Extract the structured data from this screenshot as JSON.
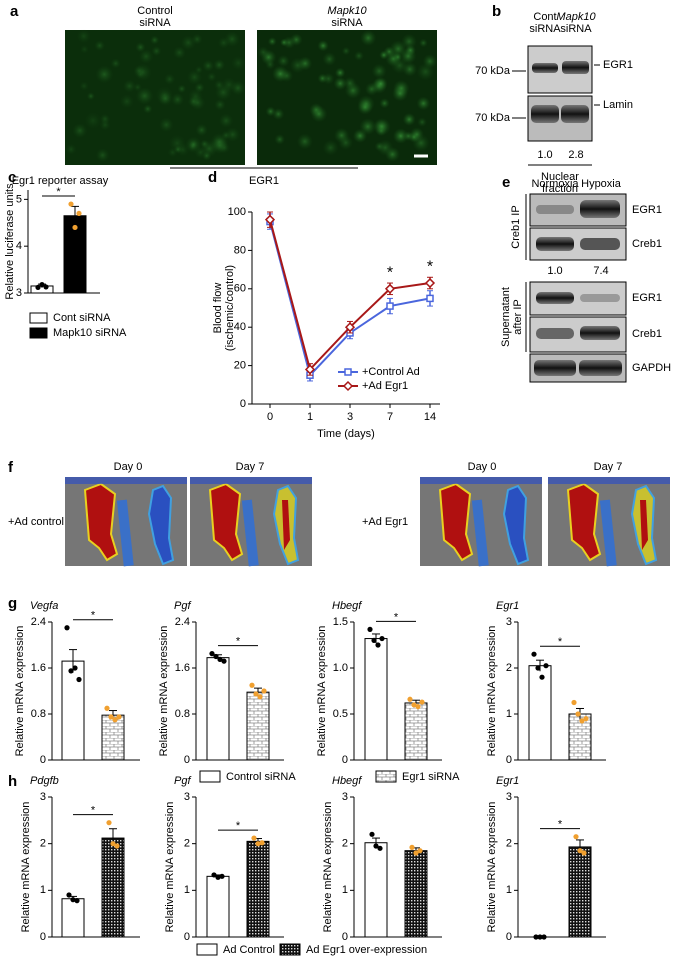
{
  "panel_labels": [
    "a",
    "b",
    "c",
    "d",
    "e",
    "f",
    "g",
    "h"
  ],
  "panel_a": {
    "labels": [
      [
        "Control",
        "siRNA"
      ],
      [
        "Mapk10",
        "siRNA"
      ]
    ],
    "caption": "EGR1"
  },
  "panel_b": {
    "lanes": [
      [
        "Cont",
        "siRNA"
      ],
      [
        "Mapk10",
        "siRNA"
      ]
    ],
    "markers": [
      "70 kDa",
      "70 kDa"
    ],
    "bands": [
      "EGR1",
      "Lamin"
    ],
    "quant": [
      "1.0",
      "2.8"
    ],
    "fraction": [
      "Nuclear",
      "fraction"
    ]
  },
  "panel_e": {
    "lanes": [
      "Normoxia",
      "Hypoxia"
    ],
    "groups": [
      [
        "Creb1 IP"
      ],
      [
        "Supernatant",
        "after IP"
      ]
    ],
    "bands": [
      "EGR1",
      "Creb1",
      "EGR1",
      "Creb1",
      "GAPDH"
    ],
    "quant": [
      "1.0",
      "7.4"
    ]
  },
  "panel_f": {
    "days": [
      "Day 0",
      "Day 7",
      "Day 0",
      "Day 7"
    ],
    "rows": [
      "+Ad control",
      "+Ad Egr1"
    ]
  },
  "legend_g": [
    "Control siRNA",
    "Egr1 siRNA"
  ],
  "legend_h": [
    "Ad Control",
    "Ad Egr1 over-expression"
  ],
  "chart_data": [
    {
      "type": "bar",
      "title": "Egr1 reporter assay",
      "ylabel": "Relative luciferase units",
      "ylim": [
        3,
        5.2
      ],
      "yticks": [
        3,
        4,
        5
      ],
      "annotation": "*",
      "series": [
        {
          "name": "Cont siRNA",
          "color": "#ffffff",
          "point_color": "#000000",
          "values": [
            3.15
          ],
          "errors": [
            0.04
          ],
          "points": [
            3.12,
            3.18,
            3.13
          ]
        },
        {
          "name": "Mapk10 siRNA",
          "color": "#000000",
          "point_color": "#f0a030",
          "values": [
            4.65
          ],
          "errors": [
            0.2
          ],
          "points": [
            4.9,
            4.4,
            4.7
          ]
        }
      ]
    },
    {
      "type": "line",
      "xlabel": "Time (days)",
      "ylabel": [
        "Blood flow",
        "(ischemic/control)"
      ],
      "categories": [
        "0",
        "1",
        "3",
        "7",
        "14"
      ],
      "ylim": [
        0,
        100
      ],
      "yticks": [
        0,
        20,
        40,
        60,
        80,
        100
      ],
      "annotations": [
        "*",
        "*"
      ],
      "series": [
        {
          "name": "+Control Ad",
          "color": "#4a66dd",
          "marker": "square",
          "values": [
            95,
            15,
            37,
            51,
            55
          ],
          "errors": [
            4,
            3,
            3,
            4,
            4
          ]
        },
        {
          "name": "+Ad Egr1",
          "color": "#a81818",
          "marker": "diamond",
          "values": [
            96,
            18,
            40,
            60,
            63
          ],
          "errors": [
            4,
            3,
            3,
            3,
            3
          ]
        }
      ]
    },
    {
      "type": "bar",
      "title": "Vegfa",
      "ylabel": "Relative mRNA expression",
      "ylim": [
        0,
        2.4
      ],
      "yticks": [
        0,
        0.8,
        1.6,
        2.4
      ],
      "annotation": "*",
      "series": [
        {
          "color": "#ffffff",
          "point_color": "#000000",
          "values": [
            1.72
          ],
          "errors": [
            0.2
          ],
          "points": [
            2.3,
            1.55,
            1.6,
            1.4
          ]
        },
        {
          "color": "#ffffff",
          "pattern": "brick",
          "point_color": "#f0a030",
          "values": [
            0.78
          ],
          "errors": [
            0.08
          ],
          "points": [
            0.9,
            0.75,
            0.7,
            0.75
          ]
        }
      ]
    },
    {
      "type": "bar",
      "title": "Pgf",
      "ylabel": "Relative mRNA expression",
      "ylim": [
        0,
        2.4
      ],
      "yticks": [
        0,
        0.8,
        1.6,
        2.4
      ],
      "annotation": "*",
      "series": [
        {
          "color": "#ffffff",
          "point_color": "#000000",
          "values": [
            1.78
          ],
          "errors": [
            0.05
          ],
          "points": [
            1.85,
            1.8,
            1.75,
            1.72
          ]
        },
        {
          "color": "#ffffff",
          "pattern": "brick",
          "point_color": "#f0a030",
          "values": [
            1.18
          ],
          "errors": [
            0.07
          ],
          "points": [
            1.3,
            1.15,
            1.1,
            1.2
          ]
        }
      ]
    },
    {
      "type": "bar",
      "title": "Hbegf",
      "ylabel": "Relative mRNA expression",
      "ylim": [
        0,
        1.5
      ],
      "yticks": [
        0,
        0.5,
        {
          "value": 1,
          "label": "1.0"
        },
        1.5
      ],
      "annotation": "*",
      "series": [
        {
          "color": "#ffffff",
          "point_color": "#000000",
          "values": [
            1.32
          ],
          "errors": [
            0.05
          ],
          "points": [
            1.42,
            1.3,
            1.25,
            1.32
          ]
        },
        {
          "color": "#ffffff",
          "pattern": "brick",
          "point_color": "#f0a030",
          "values": [
            0.62
          ],
          "errors": [
            0.03
          ],
          "points": [
            0.66,
            0.6,
            0.58,
            0.63
          ]
        }
      ]
    },
    {
      "type": "bar",
      "title": "Egr1",
      "ylabel": "Relative mRNA expression",
      "ylim": [
        0,
        3
      ],
      "yticks": [
        0,
        1,
        2,
        3
      ],
      "annotation": "*",
      "series": [
        {
          "color": "#ffffff",
          "point_color": "#000000",
          "values": [
            2.05
          ],
          "errors": [
            0.12
          ],
          "points": [
            2.3,
            2.0,
            1.8,
            2.05
          ]
        },
        {
          "color": "#ffffff",
          "pattern": "brick",
          "point_color": "#f0a030",
          "values": [
            1.0
          ],
          "errors": [
            0.12
          ],
          "points": [
            1.25,
            1.0,
            0.85,
            0.9
          ]
        }
      ]
    },
    {
      "type": "bar",
      "title": "Pdgfb",
      "ylabel": "Relative mRNA expression",
      "ylim": [
        0,
        3
      ],
      "yticks": [
        0,
        1,
        2,
        3
      ],
      "annotation": "*",
      "series": [
        {
          "color": "#ffffff",
          "point_color": "#000000",
          "values": [
            0.82
          ],
          "errors": [
            0.05
          ],
          "points": [
            0.9,
            0.8,
            0.78
          ]
        },
        {
          "color": "#000000",
          "pattern": "grid",
          "point_color": "#f0a030",
          "values": [
            2.12
          ],
          "errors": [
            0.2
          ],
          "points": [
            2.45,
            2.0,
            1.95
          ]
        }
      ]
    },
    {
      "type": "bar",
      "title": "Pgf",
      "ylabel": "Relative mRNA expression",
      "ylim": [
        0,
        3
      ],
      "yticks": [
        0,
        1,
        2,
        3
      ],
      "annotation": "*",
      "series": [
        {
          "color": "#ffffff",
          "point_color": "#000000",
          "values": [
            1.3
          ],
          "errors": [
            0.03
          ],
          "points": [
            1.33,
            1.28,
            1.3
          ]
        },
        {
          "color": "#000000",
          "pattern": "grid",
          "point_color": "#f0a030",
          "values": [
            2.05
          ],
          "errors": [
            0.06
          ],
          "points": [
            2.12,
            2.0,
            2.02
          ]
        }
      ]
    },
    {
      "type": "bar",
      "title": "Hbegf",
      "ylabel": "Relative mRNA expression",
      "ylim": [
        0,
        3
      ],
      "yticks": [
        0,
        1,
        2,
        3
      ],
      "series": [
        {
          "color": "#ffffff",
          "point_color": "#000000",
          "values": [
            2.02
          ],
          "errors": [
            0.1
          ],
          "points": [
            2.2,
            1.95,
            1.9
          ]
        },
        {
          "color": "#000000",
          "pattern": "grid",
          "point_color": "#f0a030",
          "values": [
            1.85
          ],
          "errors": [
            0.06
          ],
          "points": [
            1.92,
            1.8,
            1.85
          ]
        }
      ]
    },
    {
      "type": "bar",
      "title": "Egr1",
      "ylabel": "Relative mRNA expression",
      "ylim": [
        0,
        3
      ],
      "yticks": [
        0,
        1,
        2,
        3
      ],
      "annotation": "*",
      "series": [
        {
          "color": "#ffffff",
          "point_color": "#000000",
          "values": [
            0
          ],
          "errors": [
            0
          ],
          "points": [
            0,
            0,
            0
          ]
        },
        {
          "color": "#000000",
          "pattern": "grid",
          "point_color": "#f0a030",
          "values": [
            1.93
          ],
          "errors": [
            0.15
          ],
          "points": [
            2.15,
            1.85,
            1.8
          ]
        }
      ]
    }
  ]
}
